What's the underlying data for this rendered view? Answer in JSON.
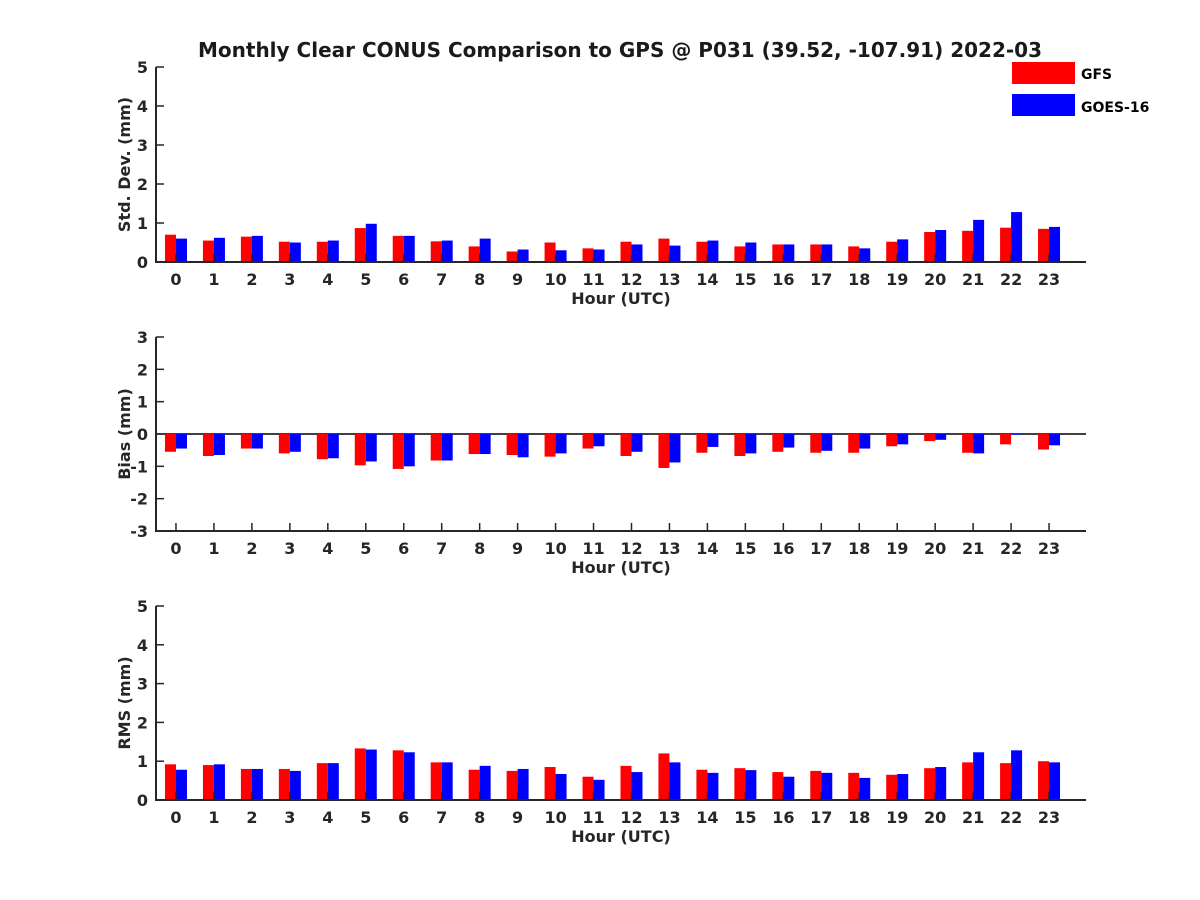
{
  "title": "Monthly Clear CONUS Comparison to GPS @ P031 (39.52, -107.91) 2022-03",
  "legend": [
    {
      "name": "GFS",
      "color": "#ff0000"
    },
    {
      "name": "GOES-16",
      "color": "#0000ff"
    }
  ],
  "chart_data": [
    {
      "type": "bar",
      "xlabel": "Hour (UTC)",
      "ylabel": "Std. Dev. (mm)",
      "ylim": [
        0,
        5
      ],
      "yticks": [
        "0",
        "1",
        "2",
        "3",
        "4",
        "5"
      ],
      "categories": [
        "0",
        "1",
        "2",
        "3",
        "4",
        "5",
        "6",
        "7",
        "8",
        "9",
        "10",
        "11",
        "12",
        "13",
        "14",
        "15",
        "16",
        "17",
        "18",
        "19",
        "20",
        "21",
        "22",
        "23"
      ],
      "legend_position": "top-right",
      "series": [
        {
          "name": "GFS",
          "color": "#ff0000",
          "values": [
            0.7,
            0.55,
            0.65,
            0.52,
            0.52,
            0.87,
            0.67,
            0.53,
            0.4,
            0.27,
            0.5,
            0.35,
            0.52,
            0.6,
            0.52,
            0.4,
            0.45,
            0.45,
            0.4,
            0.52,
            0.77,
            0.8,
            0.88,
            0.85
          ]
        },
        {
          "name": "GOES-16",
          "color": "#0000ff",
          "values": [
            0.6,
            0.62,
            0.67,
            0.5,
            0.55,
            0.98,
            0.67,
            0.55,
            0.6,
            0.32,
            0.3,
            0.32,
            0.45,
            0.42,
            0.55,
            0.5,
            0.45,
            0.45,
            0.35,
            0.58,
            0.82,
            1.08,
            1.28,
            0.9
          ]
        }
      ]
    },
    {
      "type": "bar",
      "xlabel": "Hour (UTC)",
      "ylabel": "Bias (mm)",
      "ylim": [
        -3,
        3
      ],
      "yticks": [
        "-3",
        "-2",
        "-1",
        "0",
        "1",
        "2",
        "3"
      ],
      "categories": [
        "0",
        "1",
        "2",
        "3",
        "4",
        "5",
        "6",
        "7",
        "8",
        "9",
        "10",
        "11",
        "12",
        "13",
        "14",
        "15",
        "16",
        "17",
        "18",
        "19",
        "20",
        "21",
        "22",
        "23"
      ],
      "series": [
        {
          "name": "GFS",
          "color": "#ff0000",
          "values": [
            -0.55,
            -0.68,
            -0.45,
            -0.6,
            -0.78,
            -0.97,
            -1.08,
            -0.82,
            -0.62,
            -0.65,
            -0.7,
            -0.45,
            -0.68,
            -1.05,
            -0.58,
            -0.68,
            -0.55,
            -0.58,
            -0.58,
            -0.38,
            -0.22,
            -0.58,
            -0.32,
            -0.48
          ]
        },
        {
          "name": "GOES-16",
          "color": "#0000ff",
          "values": [
            -0.45,
            -0.65,
            -0.45,
            -0.55,
            -0.75,
            -0.85,
            -1.0,
            -0.82,
            -0.62,
            -0.72,
            -0.6,
            -0.38,
            -0.55,
            -0.88,
            -0.4,
            -0.6,
            -0.42,
            -0.52,
            -0.45,
            -0.32,
            -0.18,
            -0.6,
            -0.02,
            -0.35
          ]
        }
      ]
    },
    {
      "type": "bar",
      "xlabel": "Hour (UTC)",
      "ylabel": "RMS (mm)",
      "ylim": [
        0,
        5
      ],
      "yticks": [
        "0",
        "1",
        "2",
        "3",
        "4",
        "5"
      ],
      "categories": [
        "0",
        "1",
        "2",
        "3",
        "4",
        "5",
        "6",
        "7",
        "8",
        "9",
        "10",
        "11",
        "12",
        "13",
        "14",
        "15",
        "16",
        "17",
        "18",
        "19",
        "20",
        "21",
        "22",
        "23"
      ],
      "series": [
        {
          "name": "GFS",
          "color": "#ff0000",
          "values": [
            0.92,
            0.9,
            0.8,
            0.8,
            0.95,
            1.33,
            1.28,
            0.97,
            0.78,
            0.75,
            0.85,
            0.6,
            0.88,
            1.2,
            0.78,
            0.82,
            0.72,
            0.75,
            0.7,
            0.65,
            0.82,
            0.97,
            0.95,
            1.0
          ]
        },
        {
          "name": "GOES-16",
          "color": "#0000ff",
          "values": [
            0.78,
            0.92,
            0.8,
            0.75,
            0.95,
            1.3,
            1.23,
            0.97,
            0.88,
            0.8,
            0.67,
            0.52,
            0.72,
            0.97,
            0.7,
            0.77,
            0.6,
            0.7,
            0.57,
            0.67,
            0.85,
            1.23,
            1.28,
            0.97
          ]
        }
      ]
    }
  ]
}
